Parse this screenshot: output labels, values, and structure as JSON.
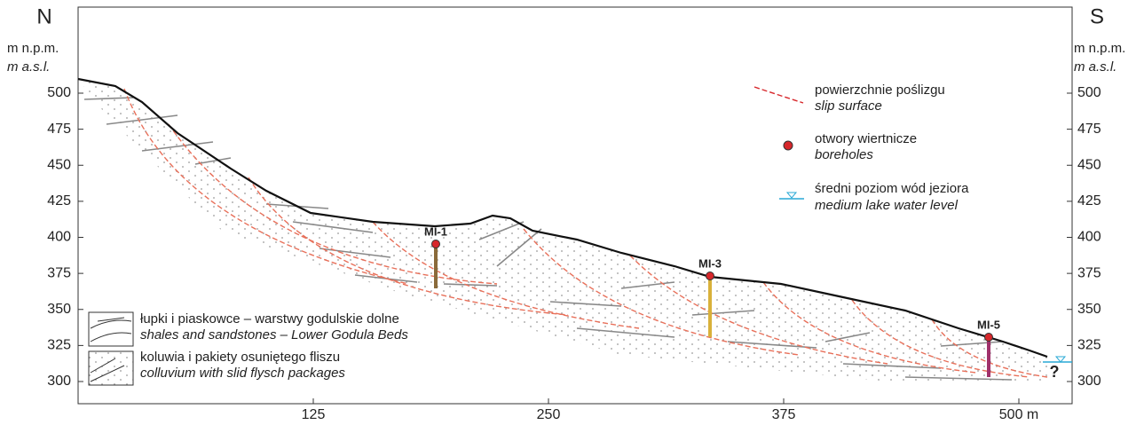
{
  "header": {
    "left": {
      "direction": "N",
      "unit_pl": "m n.p.m.",
      "unit_en": "m a.s.l."
    },
    "right": {
      "direction": "S",
      "unit_pl": "m n.p.m.",
      "unit_en": "m a.s.l."
    }
  },
  "y_axis": {
    "ticks": [
      500,
      475,
      450,
      425,
      400,
      375,
      350,
      325,
      300
    ]
  },
  "x_axis": {
    "ticks": [
      125,
      250,
      375,
      {
        "value": 500,
        "label": "500 m"
      }
    ]
  },
  "boreholes": [
    {
      "label": "MI-1"
    },
    {
      "label": "MI-3"
    },
    {
      "label": "MI-5"
    }
  ],
  "unknown_marker": "?",
  "legend_right": [
    {
      "pl": "powierzchnie poślizgu",
      "en": "slip surface"
    },
    {
      "pl": "otwory wiertnicze",
      "en": "boreholes"
    },
    {
      "pl": "średni poziom wód jeziora",
      "en": "medium lake water level"
    }
  ],
  "legend_left": [
    {
      "pl": "łupki i piaskowce – warstwy godulskie dolne",
      "en": "shales and sandstones – Lower Godula Beds"
    },
    {
      "pl": "koluwia i pakiety osuniętego fliszu",
      "en": "colluvium with slid flysch packages"
    }
  ]
}
